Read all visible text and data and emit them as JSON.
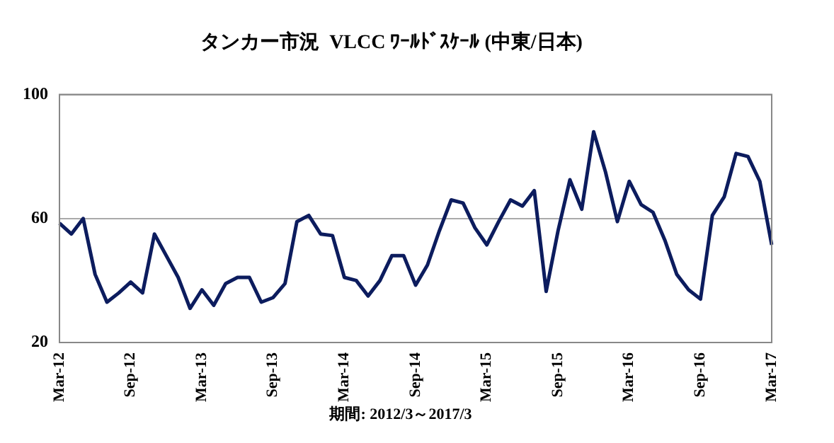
{
  "chart_data": {
    "type": "line",
    "title": "タンカー市況  VLCC ﾜｰﾙﾄﾞｽｹｰﾙ (中東/日本)",
    "categories": [
      "Mar-12",
      null,
      null,
      null,
      null,
      null,
      "Sep-12",
      null,
      null,
      null,
      null,
      null,
      "Mar-13",
      null,
      null,
      null,
      null,
      null,
      "Sep-13",
      null,
      null,
      null,
      null,
      null,
      "Mar-14",
      null,
      null,
      null,
      null,
      null,
      "Sep-14",
      null,
      null,
      null,
      null,
      null,
      "Mar-15",
      null,
      null,
      null,
      null,
      null,
      "Sep-15",
      null,
      null,
      null,
      null,
      null,
      "Mar-16",
      null,
      null,
      null,
      null,
      null,
      "Sep-16",
      null,
      null,
      null,
      null,
      null,
      "Mar-17"
    ],
    "series": [
      {
        "color": "#0c1c5e",
        "values": [
          58.5,
          55,
          60,
          42,
          33,
          36,
          39.5,
          36,
          55,
          48,
          41,
          31,
          37,
          32,
          39,
          41,
          41,
          33,
          34.5,
          39,
          59,
          61,
          55,
          54.5,
          41,
          40,
          35,
          40,
          48,
          48,
          38.5,
          45,
          56,
          66,
          65,
          57,
          51.5,
          59,
          66,
          64,
          69,
          36.5,
          56,
          72.5,
          63,
          88,
          75,
          59,
          72,
          64.5,
          62,
          53,
          42,
          37,
          34,
          61,
          67,
          81,
          80,
          72,
          51.5
        ]
      }
    ],
    "ylim": [
      20,
      100
    ],
    "yticks": [
      20,
      60,
      100
    ],
    "grid": "y",
    "legend": false,
    "marker": "none",
    "line_style": "solid",
    "annotations": [
      "期間: 2012/3～2017/3"
    ]
  }
}
